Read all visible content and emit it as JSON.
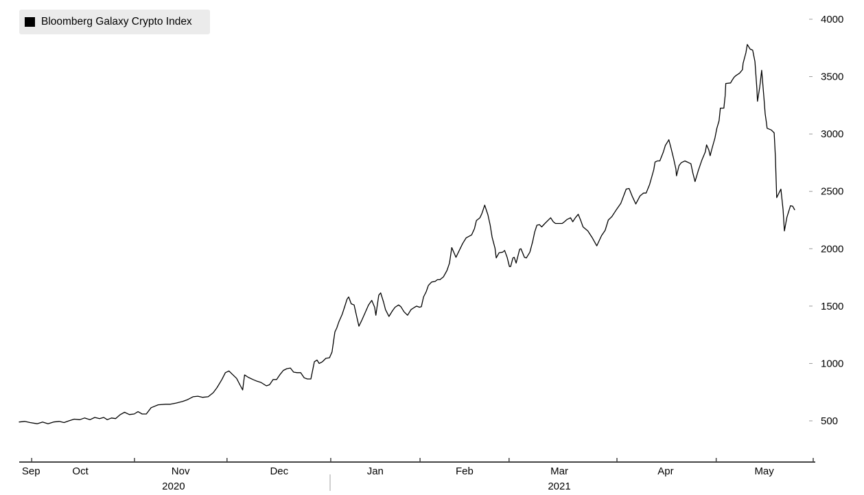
{
  "legend": {
    "label": "Bloomberg Galaxy Crypto Index",
    "swatch_color": "#000000",
    "background_color": "#ebebeb"
  },
  "colors": {
    "line": "#000000",
    "axis": "#434343",
    "year_divider": "#a0a0a0",
    "y_tick": "#999999",
    "text": "#000000",
    "background": "#ffffff"
  },
  "chart_data": {
    "type": "line",
    "title": "Bloomberg Galaxy Crypto Index",
    "x_axis": {
      "unit": "days since 2020-09-26",
      "start_date": "2020-09-26",
      "end_date": "2021-05-31",
      "domain_days": [
        0,
        248
      ],
      "month_tick_days": [
        3.9,
        36,
        64.9,
        97.3,
        125.2,
        153,
        186.7,
        217.7,
        248
      ],
      "month_labels": [
        {
          "text": "Sep",
          "day": 3.7
        },
        {
          "text": "Oct",
          "day": 19.1
        },
        {
          "text": "Nov",
          "day": 50.4
        },
        {
          "text": "Dec",
          "day": 81.2
        },
        {
          "text": "Jan",
          "day": 111.2
        },
        {
          "text": "Feb",
          "day": 139.1
        },
        {
          "text": "Mar",
          "day": 168.7
        },
        {
          "text": "Apr",
          "day": 201.9
        },
        {
          "text": "May",
          "day": 232.7
        }
      ],
      "year_labels": [
        {
          "text": "2020",
          "day": 48.2
        },
        {
          "text": "2021",
          "day": 168.7
        }
      ],
      "year_divider_day": 97.1
    },
    "y_axis": {
      "side": "right",
      "ticks": [
        500,
        1000,
        1500,
        2000,
        2500,
        3000,
        3500,
        4000
      ],
      "range_shown": [
        430,
        4050
      ],
      "grid": false
    },
    "series": [
      {
        "name": "Bloomberg Galaxy Crypto Index",
        "color": "#000000",
        "points": [
          [
            0,
            490
          ],
          [
            1.7,
            495
          ],
          [
            3.4,
            485
          ],
          [
            5.6,
            475
          ],
          [
            7.3,
            490
          ],
          [
            9,
            475
          ],
          [
            10.7,
            490
          ],
          [
            12.5,
            495
          ],
          [
            14,
            485
          ],
          [
            15.5,
            500
          ],
          [
            17.2,
            515
          ],
          [
            18.9,
            510
          ],
          [
            20.4,
            525
          ],
          [
            22.1,
            510
          ],
          [
            23.6,
            530
          ],
          [
            25.1,
            520
          ],
          [
            26.4,
            530
          ],
          [
            27.5,
            510
          ],
          [
            28.8,
            525
          ],
          [
            30.1,
            520
          ],
          [
            31.6,
            555
          ],
          [
            32.9,
            575
          ],
          [
            34.4,
            555
          ],
          [
            35.9,
            560
          ],
          [
            37.1,
            580
          ],
          [
            38.4,
            560
          ],
          [
            39.7,
            560
          ],
          [
            41.2,
            615
          ],
          [
            43.4,
            640
          ],
          [
            45.7,
            645
          ],
          [
            47.2,
            645
          ],
          [
            49,
            655
          ],
          [
            51.1,
            670
          ],
          [
            52.6,
            685
          ],
          [
            54.3,
            710
          ],
          [
            55.8,
            715
          ],
          [
            57.3,
            705
          ],
          [
            59,
            710
          ],
          [
            60.6,
            745
          ],
          [
            61.8,
            790
          ],
          [
            63.3,
            860
          ],
          [
            64.4,
            920
          ],
          [
            65.5,
            935
          ],
          [
            66.6,
            905
          ],
          [
            67.9,
            870
          ],
          [
            69.1,
            805
          ],
          [
            69.8,
            770
          ],
          [
            70.4,
            900
          ],
          [
            71.5,
            880
          ],
          [
            73,
            860
          ],
          [
            74.3,
            845
          ],
          [
            75.5,
            835
          ],
          [
            77.2,
            805
          ],
          [
            78.2,
            815
          ],
          [
            79.3,
            860
          ],
          [
            80.4,
            860
          ],
          [
            81.5,
            905
          ],
          [
            82.5,
            940
          ],
          [
            83.6,
            955
          ],
          [
            84.7,
            960
          ],
          [
            85.7,
            925
          ],
          [
            86.8,
            920
          ],
          [
            87.9,
            920
          ],
          [
            89,
            875
          ],
          [
            90,
            865
          ],
          [
            91.1,
            865
          ],
          [
            92.2,
            1015
          ],
          [
            93,
            1030
          ],
          [
            93.7,
            1000
          ],
          [
            94.7,
            1015
          ],
          [
            95.8,
            1045
          ],
          [
            96.9,
            1050
          ],
          [
            97.7,
            1100
          ],
          [
            98.6,
            1275
          ],
          [
            99.2,
            1310
          ],
          [
            99.8,
            1360
          ],
          [
            100.9,
            1430
          ],
          [
            101.6,
            1490
          ],
          [
            102.4,
            1560
          ],
          [
            102.9,
            1580
          ],
          [
            103.7,
            1520
          ],
          [
            104.6,
            1510
          ],
          [
            105.6,
            1385
          ],
          [
            106.1,
            1325
          ],
          [
            106.9,
            1370
          ],
          [
            108,
            1440
          ],
          [
            109.1,
            1510
          ],
          [
            110.1,
            1550
          ],
          [
            111,
            1490
          ],
          [
            111.4,
            1420
          ],
          [
            112.3,
            1595
          ],
          [
            112.9,
            1615
          ],
          [
            113.8,
            1535
          ],
          [
            114.4,
            1470
          ],
          [
            115.5,
            1410
          ],
          [
            116.6,
            1460
          ],
          [
            117.4,
            1490
          ],
          [
            118.5,
            1510
          ],
          [
            119.2,
            1495
          ],
          [
            120.2,
            1450
          ],
          [
            121.3,
            1420
          ],
          [
            122.4,
            1470
          ],
          [
            123.5,
            1490
          ],
          [
            124.1,
            1500
          ],
          [
            125,
            1490
          ],
          [
            125.6,
            1495
          ],
          [
            126.3,
            1580
          ],
          [
            127.1,
            1625
          ],
          [
            127.8,
            1680
          ],
          [
            128.8,
            1710
          ],
          [
            129.9,
            1715
          ],
          [
            130.6,
            1730
          ],
          [
            131.4,
            1730
          ],
          [
            132.5,
            1755
          ],
          [
            133.6,
            1810
          ],
          [
            134.4,
            1875
          ],
          [
            135.1,
            2010
          ],
          [
            136.4,
            1925
          ],
          [
            138.5,
            2045
          ],
          [
            139.6,
            2095
          ],
          [
            140.6,
            2110
          ],
          [
            141.3,
            2120
          ],
          [
            142.2,
            2175
          ],
          [
            142.8,
            2245
          ],
          [
            143.9,
            2270
          ],
          [
            144.5,
            2305
          ],
          [
            145.4,
            2380
          ],
          [
            146.4,
            2295
          ],
          [
            147.1,
            2205
          ],
          [
            147.7,
            2100
          ],
          [
            148.6,
            2005
          ],
          [
            149,
            1920
          ],
          [
            149.9,
            1965
          ],
          [
            151,
            1970
          ],
          [
            151.6,
            1985
          ],
          [
            152.4,
            1925
          ],
          [
            153.1,
            1845
          ],
          [
            153.5,
            1845
          ],
          [
            154.2,
            1920
          ],
          [
            154.6,
            1925
          ],
          [
            155.2,
            1875
          ],
          [
            156.3,
            1995
          ],
          [
            156.7,
            2000
          ],
          [
            157.8,
            1925
          ],
          [
            158.4,
            1920
          ],
          [
            159.5,
            1970
          ],
          [
            160.4,
            2065
          ],
          [
            161,
            2145
          ],
          [
            161.7,
            2205
          ],
          [
            162.5,
            2210
          ],
          [
            163.2,
            2190
          ],
          [
            164.2,
            2220
          ],
          [
            166,
            2270
          ],
          [
            166.8,
            2235
          ],
          [
            167.5,
            2220
          ],
          [
            168.6,
            2220
          ],
          [
            169.6,
            2220
          ],
          [
            170.3,
            2235
          ],
          [
            171.1,
            2255
          ],
          [
            172.2,
            2270
          ],
          [
            172.9,
            2235
          ],
          [
            173.7,
            2270
          ],
          [
            174.6,
            2300
          ],
          [
            175.4,
            2245
          ],
          [
            176.1,
            2190
          ],
          [
            177.6,
            2155
          ],
          [
            178.9,
            2100
          ],
          [
            180.4,
            2025
          ],
          [
            181.9,
            2115
          ],
          [
            183,
            2160
          ],
          [
            184,
            2250
          ],
          [
            185.1,
            2280
          ],
          [
            186.4,
            2335
          ],
          [
            187.9,
            2395
          ],
          [
            189.6,
            2520
          ],
          [
            190.5,
            2525
          ],
          [
            191.5,
            2455
          ],
          [
            192.6,
            2390
          ],
          [
            193.9,
            2460
          ],
          [
            195,
            2485
          ],
          [
            195.8,
            2485
          ],
          [
            196.9,
            2560
          ],
          [
            197.6,
            2630
          ],
          [
            198.2,
            2690
          ],
          [
            198.6,
            2755
          ],
          [
            199.3,
            2765
          ],
          [
            200.1,
            2765
          ],
          [
            201.2,
            2845
          ],
          [
            201.8,
            2900
          ],
          [
            202.7,
            2940
          ],
          [
            202.9,
            2950
          ],
          [
            203.6,
            2875
          ],
          [
            204.4,
            2785
          ],
          [
            205.1,
            2695
          ],
          [
            205.3,
            2635
          ],
          [
            206.1,
            2725
          ],
          [
            206.8,
            2750
          ],
          [
            207.9,
            2765
          ],
          [
            208.7,
            2755
          ],
          [
            209.8,
            2740
          ],
          [
            210.4,
            2660
          ],
          [
            211.1,
            2585
          ],
          [
            212.1,
            2680
          ],
          [
            213.2,
            2770
          ],
          [
            214.3,
            2845
          ],
          [
            214.7,
            2905
          ],
          [
            215.4,
            2860
          ],
          [
            215.8,
            2810
          ],
          [
            216.4,
            2875
          ],
          [
            217.3,
            2965
          ],
          [
            217.9,
            3050
          ],
          [
            218.6,
            3115
          ],
          [
            219,
            3225
          ],
          [
            220.1,
            3225
          ],
          [
            220.5,
            3335
          ],
          [
            220.7,
            3440
          ],
          [
            222.2,
            3445
          ],
          [
            222.6,
            3465
          ],
          [
            223.3,
            3495
          ],
          [
            223.9,
            3510
          ],
          [
            225,
            3530
          ],
          [
            225.9,
            3560
          ],
          [
            226.1,
            3615
          ],
          [
            227,
            3710
          ],
          [
            227.4,
            3780
          ],
          [
            228.3,
            3740
          ],
          [
            229.1,
            3730
          ],
          [
            229.8,
            3630
          ],
          [
            230.4,
            3395
          ],
          [
            230.6,
            3285
          ],
          [
            231.3,
            3410
          ],
          [
            231.9,
            3555
          ],
          [
            232.6,
            3315
          ],
          [
            233,
            3175
          ],
          [
            233.4,
            3095
          ],
          [
            233.6,
            3050
          ],
          [
            234.9,
            3035
          ],
          [
            235.8,
            3010
          ],
          [
            236.2,
            2800
          ],
          [
            236.4,
            2610
          ],
          [
            236.6,
            2445
          ],
          [
            237.9,
            2520
          ],
          [
            238.6,
            2340
          ],
          [
            239,
            2155
          ],
          [
            239.8,
            2275
          ],
          [
            240.9,
            2375
          ],
          [
            241.6,
            2370
          ],
          [
            242.2,
            2340
          ]
        ]
      }
    ]
  }
}
